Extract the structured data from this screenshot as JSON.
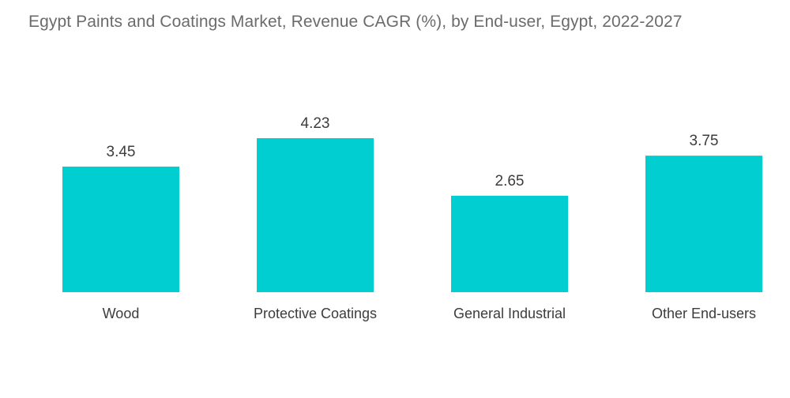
{
  "chart_data": {
    "type": "bar",
    "title": "Egypt Paints and Coatings Market, Revenue CAGR (%), by End-user, Egypt, 2022-2027",
    "categories": [
      "Wood",
      "Protective Coatings",
      "General Industrial",
      "Other End-users"
    ],
    "values": [
      3.45,
      4.23,
      2.65,
      3.75
    ],
    "data_labels": [
      "3.45",
      "4.23",
      "2.65",
      "3.75"
    ],
    "xlabel": "",
    "ylabel": "",
    "ylim": [
      0,
      4.23
    ],
    "grid": false,
    "legend": "none",
    "bar_color": "#00CED1"
  }
}
